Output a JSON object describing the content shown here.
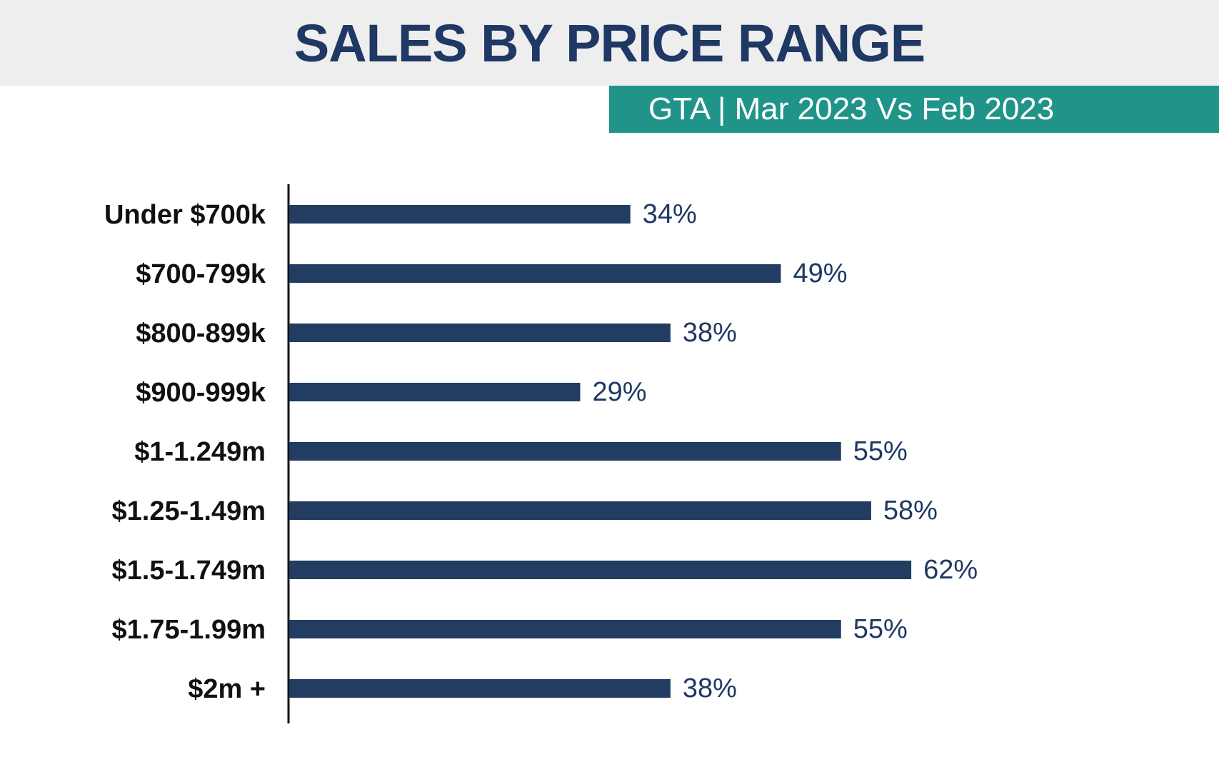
{
  "header": {
    "title": "SALES BY PRICE RANGE",
    "subtitle": "GTA | Mar 2023 Vs Feb 2023"
  },
  "colors": {
    "title": "#1f3864",
    "bar": "#223c62",
    "subtitle_bg": "#21948a",
    "title_bg": "#eeeeee"
  },
  "chart_data": {
    "type": "bar",
    "orientation": "horizontal",
    "title": "SALES BY PRICE RANGE",
    "subtitle": "GTA | Mar 2023 Vs Feb 2023",
    "categories": [
      "Under $700k",
      "$700-799k",
      "$800-899k",
      "$900-999k",
      "$1-1.249m",
      "$1.25-1.49m",
      "$1.5-1.749m",
      "$1.75-1.99m",
      "$2m +"
    ],
    "values": [
      34,
      49,
      38,
      29,
      55,
      58,
      62,
      55,
      38
    ],
    "value_labels": [
      "34%",
      "49%",
      "38%",
      "29%",
      "55%",
      "58%",
      "62%",
      "55%",
      "38%"
    ],
    "unit": "%",
    "xlim": [
      0,
      100
    ],
    "grid": false
  }
}
